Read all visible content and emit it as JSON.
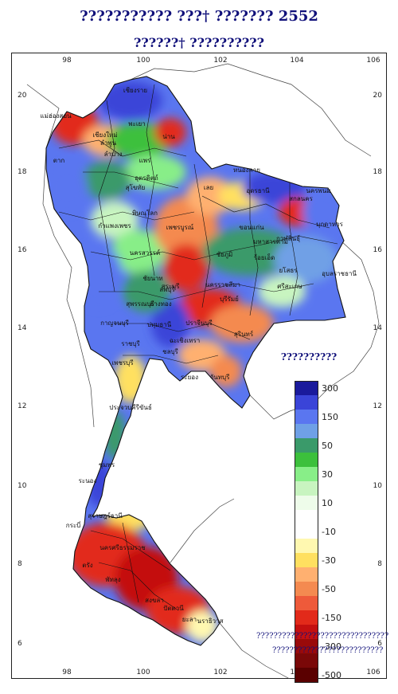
{
  "title_line1": "??????????? ???† ??????? 2552",
  "title_line2": "??????† ??????????",
  "legend": {
    "title": "??????????",
    "entries": [
      {
        "label": "300",
        "color": "#1a1a9c"
      },
      {
        "label": "",
        "color": "#3a44d8"
      },
      {
        "label": "150",
        "color": "#5a76f0"
      },
      {
        "label": "",
        "color": "#6fa0e6"
      },
      {
        "label": "50",
        "color": "#3a9a6a"
      },
      {
        "label": "",
        "color": "#3cc03c"
      },
      {
        "label": "30",
        "color": "#88ee88"
      },
      {
        "label": "",
        "color": "#c8f4c0"
      },
      {
        "label": "10",
        "color": "#eefcea"
      },
      {
        "label": "",
        "color": "#ffffff"
      },
      {
        "label": "-10",
        "color": "#ffffff"
      },
      {
        "label": "",
        "color": "#fff8b0"
      },
      {
        "label": "-30",
        "color": "#ffe060"
      },
      {
        "label": "",
        "color": "#ffb070"
      },
      {
        "label": "-50",
        "color": "#f48a50"
      },
      {
        "label": "",
        "color": "#ee5a3a"
      },
      {
        "label": "-150",
        "color": "#e22a1a"
      },
      {
        "label": "",
        "color": "#c41010"
      },
      {
        "label": "-300",
        "color": "#9a0a0a"
      },
      {
        "label": "",
        "color": "#7a0808"
      },
      {
        "label": "-500",
        "color": "#5a0000"
      }
    ]
  },
  "axes": {
    "longitudes": [
      "98",
      "100",
      "102",
      "104",
      "106"
    ],
    "latitudes": [
      "20",
      "18",
      "16",
      "14",
      "12",
      "10",
      "8",
      "6"
    ]
  },
  "places": [
    "เชียงราย",
    "แม่ฮ่องสอน",
    "เชียงใหม่",
    "ลำพูน",
    "ลำปาง",
    "พะเยา",
    "น่าน",
    "แพร่",
    "อุตรดิตถ์",
    "ตาก",
    "สุโขทัย",
    "พิษณุโลก",
    "กำแพงเพชร",
    "เพชรบูรณ์",
    "นครสวรรค์",
    "ชัยนาท",
    "ลพบุรี",
    "สุพรรณบุรี",
    "กาญจนบุรี",
    "ราชบุรี",
    "ปทุมธานี",
    "ปราจีนบุรี",
    "ฉะเชิงเทรา",
    "ชลบุรี",
    "ระยอง",
    "จันทบุรี",
    "เพชรบุรี",
    "ประจวบคีรีขันธ์",
    "ชุมพร",
    "ระนอง",
    "สุราษฎร์ธานี",
    "กระบี่",
    "นครศรีธรรมราช",
    "ตรัง",
    "พัทลุง",
    "สงขลา",
    "ปัตตานี",
    "ยะลา",
    "นราธิวาส",
    "หนองคาย",
    "อุดรธานี",
    "นครพนม",
    "สกลนคร",
    "มุกดาหาร",
    "เลย",
    "ขอนแก่น",
    "ชัยภูมิ",
    "นครราชสีมา",
    "บุรีรัมย์",
    "สุรินทร์",
    "ร้อยเอ็ด",
    "อุบลราชธานี",
    "ศรีสะเกษ",
    "ยโสธร",
    "มหาสารคาม",
    "กาฬสินธุ์",
    "สระบุรี",
    "อ่างทอง"
  ],
  "footnote_line1": "???????????????????????????????",
  "footnote_line2": "??????????????????????????"
}
